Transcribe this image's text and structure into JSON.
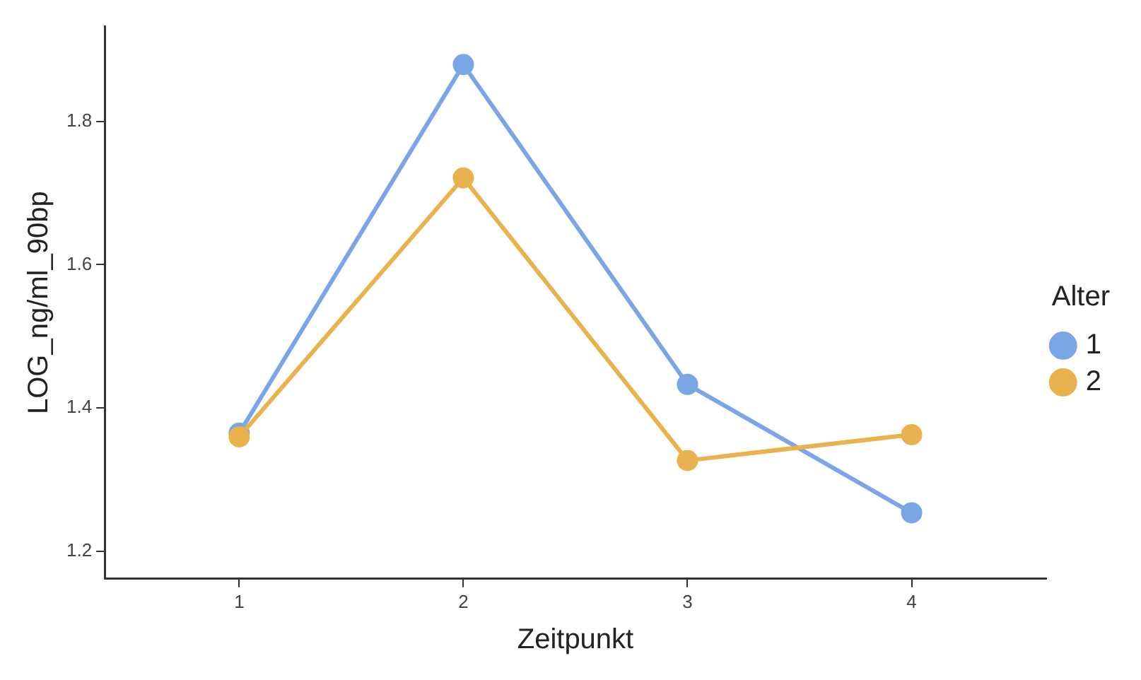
{
  "chart_data": {
    "type": "line",
    "xlabel": "Zeitpunkt",
    "ylabel": "LOG_ng/ml_90bp",
    "legend_title": "Alter",
    "x": [
      1,
      2,
      3,
      4
    ],
    "series": [
      {
        "name": "1",
        "color": "#7ba6e6",
        "values": [
          1.365,
          1.879,
          1.433,
          1.254
        ]
      },
      {
        "name": "2",
        "color": "#e8b24f",
        "values": [
          1.36,
          1.721,
          1.327,
          1.363
        ]
      }
    ],
    "xlim": [
      0.4,
      4.6
    ],
    "xticks": [
      1,
      2,
      3,
      4
    ],
    "ylim": [
      1.162,
      1.932
    ],
    "yticks": [
      1.2,
      1.4,
      1.6,
      1.8
    ],
    "grid": false,
    "legend": "right",
    "marker": "circle",
    "line_style": "solid"
  }
}
